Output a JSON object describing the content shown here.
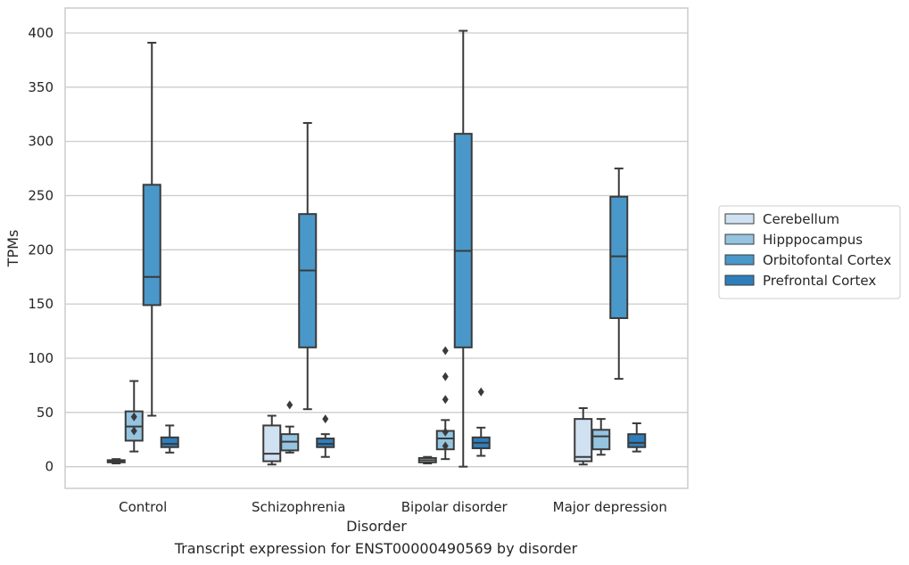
{
  "chart_data": {
    "type": "box",
    "caption": "Transcript expression for ENST00000490569 by disorder",
    "xlabel": "Disorder",
    "ylabel": "TPMs",
    "ylim": [
      -20,
      423
    ],
    "yticks": [
      0,
      50,
      100,
      150,
      200,
      250,
      300,
      350,
      400
    ],
    "grid": "horizontal",
    "legend_position": "right",
    "categories": [
      "Control",
      "Schizophrenia",
      "Bipolar disorder",
      "Major depression"
    ],
    "series": [
      {
        "name": "Cerebellum",
        "color": "#d0e1f2",
        "boxes": [
          {
            "whisker_low": 3,
            "q1": 4,
            "median": 5,
            "q3": 6,
            "whisker_high": 7,
            "outliers": []
          },
          {
            "whisker_low": 2,
            "q1": 5,
            "median": 12,
            "q3": 38,
            "whisker_high": 47,
            "outliers": []
          },
          {
            "whisker_low": 3,
            "q1": 4,
            "median": 6,
            "q3": 8,
            "whisker_high": 9,
            "outliers": []
          },
          {
            "whisker_low": 2,
            "q1": 5,
            "median": 9,
            "q3": 44,
            "whisker_high": 54,
            "outliers": []
          }
        ]
      },
      {
        "name": "Hipppocampus",
        "color": "#94c4df",
        "boxes": [
          {
            "whisker_low": 14,
            "q1": 24,
            "median": 37,
            "q3": 51,
            "whisker_high": 79,
            "outliers": [
              33,
              46
            ]
          },
          {
            "whisker_low": 13,
            "q1": 15,
            "median": 23,
            "q3": 30,
            "whisker_high": 37,
            "outliers": [
              57
            ]
          },
          {
            "whisker_low": 7,
            "q1": 16,
            "median": 26,
            "q3": 33,
            "whisker_high": 43,
            "outliers": [
              19,
              32,
              62,
              83,
              107
            ]
          },
          {
            "whisker_low": 11,
            "q1": 16,
            "median": 28,
            "q3": 34,
            "whisker_high": 44,
            "outliers": []
          }
        ]
      },
      {
        "name": "Orbitofontal Cortex",
        "color": "#4a98c9",
        "boxes": [
          {
            "whisker_low": 47,
            "q1": 149,
            "median": 175,
            "q3": 260,
            "whisker_high": 391,
            "outliers": []
          },
          {
            "whisker_low": 53,
            "q1": 110,
            "median": 181,
            "q3": 233,
            "whisker_high": 317,
            "outliers": []
          },
          {
            "whisker_low": 0,
            "q1": 110,
            "median": 199,
            "q3": 307,
            "whisker_high": 402,
            "outliers": []
          },
          {
            "whisker_low": 81,
            "q1": 137,
            "median": 194,
            "q3": 249,
            "whisker_high": 275,
            "outliers": []
          }
        ]
      },
      {
        "name": "Prefrontal Cortex",
        "color": "#2e7ebc",
        "boxes": [
          {
            "whisker_low": 13,
            "q1": 18,
            "median": 21,
            "q3": 27,
            "whisker_high": 38,
            "outliers": []
          },
          {
            "whisker_low": 9,
            "q1": 18,
            "median": 21,
            "q3": 26,
            "whisker_high": 30,
            "outliers": [
              44
            ]
          },
          {
            "whisker_low": 10,
            "q1": 17,
            "median": 22,
            "q3": 27,
            "whisker_high": 36,
            "outliers": [
              69
            ]
          },
          {
            "whisker_low": 14,
            "q1": 18,
            "median": 22,
            "q3": 30,
            "whisker_high": 40,
            "outliers": []
          }
        ]
      }
    ]
  }
}
